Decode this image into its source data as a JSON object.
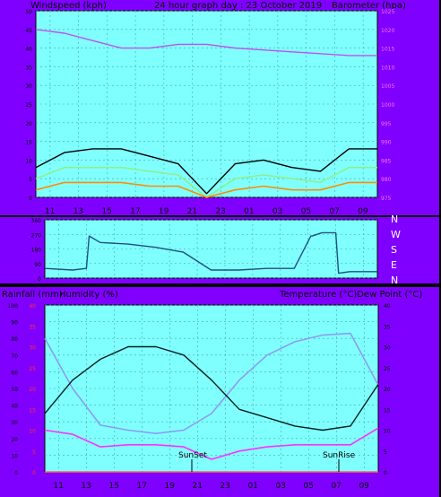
{
  "header": {
    "left": "Windspeed (kph)",
    "center": "24 hour graph day : 23 October 2019",
    "right": "Barometer (hpa)"
  },
  "time_ticks": [
    "11",
    "13",
    "15",
    "17",
    "19",
    "21",
    "23",
    "01",
    "03",
    "05",
    "07",
    "09"
  ],
  "wind_dir_labels": [
    "N",
    "W",
    "S",
    "E",
    "N"
  ],
  "lower_header": {
    "left1": "Rainfall (mm)",
    "left2": "Humidity (%)",
    "right": "Temperature (°C)Dew Point (°C)"
  },
  "annotations": {
    "sunset": "SunSet",
    "sunrise": "SunRise"
  },
  "colors": {
    "panel_bg": "#80ffff",
    "frame_bg": "#8000ff",
    "gust": "#000000",
    "speed": "#90ee90",
    "average": "#ff8c00",
    "barometer": "#c050f0",
    "direction": "#205080",
    "temperature": "#002020",
    "humidity": "#8c9cf0",
    "dew_point": "#ff30ff",
    "rain": "#ff6060"
  },
  "chart_data": [
    {
      "type": "line",
      "title": "24 hour graph day : 23 October 2019",
      "ylabel": "Windspeed (kph)",
      "y2label": "Barometer (hpa)",
      "ylim": [
        0,
        50
      ],
      "y2lim": [
        975,
        1025
      ],
      "yticks": [
        0,
        5,
        10,
        15,
        20,
        25,
        30,
        35,
        40,
        45,
        50
      ],
      "y2ticks": [
        975,
        980,
        985,
        990,
        995,
        1000,
        1005,
        1010,
        1015,
        1020,
        1025
      ],
      "grid": true,
      "x_hours": [
        0,
        2,
        4,
        6,
        8,
        10,
        12,
        14,
        16,
        18,
        20,
        22,
        24
      ],
      "series": [
        {
          "values": [
            45.0,
            44.0,
            42.0,
            40.0,
            40.0,
            41.0,
            41.0,
            40.0,
            39.5,
            39.0,
            38.5,
            38.0,
            38.0
          ]
        },
        {
          "values": [
            8,
            12,
            13,
            13,
            11,
            9,
            1,
            9,
            10,
            8,
            7,
            13,
            13
          ]
        },
        {
          "values": [
            5,
            8,
            8,
            8,
            7,
            6,
            0,
            5,
            6,
            5,
            4,
            8,
            8
          ]
        },
        {
          "values": [
            2,
            4,
            4,
            4,
            3,
            3,
            0,
            2,
            3,
            2,
            2,
            4,
            4
          ]
        }
      ]
    },
    {
      "type": "line",
      "ylim": [
        0,
        360
      ],
      "yticks": [
        0,
        90,
        180,
        270,
        360
      ],
      "grid": true,
      "x_hours": [
        0,
        2,
        3,
        3.2,
        4,
        6,
        8,
        10,
        12,
        14,
        16,
        18,
        19.2,
        19.3,
        20,
        21,
        21.2,
        22,
        24
      ],
      "series": [
        {
          "values": [
            60,
            50,
            60,
            260,
            220,
            210,
            190,
            160,
            50,
            50,
            60,
            60,
            260,
            260,
            280,
            280,
            30,
            40,
            40
          ]
        }
      ]
    },
    {
      "type": "line",
      "ylabel": "Humidity (%)",
      "y2label": "Temperature (°C)",
      "ylim": [
        0,
        100
      ],
      "yticks": [
        0,
        10,
        20,
        30,
        40,
        50,
        60,
        70,
        80,
        90,
        100
      ],
      "y2lim": [
        0,
        40
      ],
      "y2ticks": [
        0,
        5,
        10,
        15,
        20,
        25,
        30,
        35,
        40
      ],
      "rain_ticks": [
        0,
        5,
        10,
        15,
        20,
        25,
        30,
        35,
        40
      ],
      "grid": true,
      "x_hours": [
        0,
        2,
        4,
        6,
        8,
        10,
        12,
        14,
        16,
        18,
        20,
        22,
        24
      ],
      "series": [
        {
          "values": [
            14.0,
            22.0,
            27.0,
            30.0,
            30.0,
            28.0,
            22.0,
            15.0,
            13.0,
            11.0,
            10.0,
            11.0,
            21.0
          ]
        },
        {
          "values": [
            80,
            50,
            28,
            25,
            23,
            25,
            35,
            55,
            70,
            78,
            82,
            83,
            52
          ]
        },
        {
          "values": [
            10.0,
            9.0,
            6.0,
            6.5,
            6.5,
            6.0,
            3.0,
            5.0,
            6.0,
            6.5,
            6.5,
            6.5,
            10.5
          ]
        },
        {
          "values": [
            0,
            0,
            0,
            0,
            0,
            0,
            0,
            0,
            0,
            0,
            0,
            0,
            0
          ]
        }
      ]
    }
  ]
}
